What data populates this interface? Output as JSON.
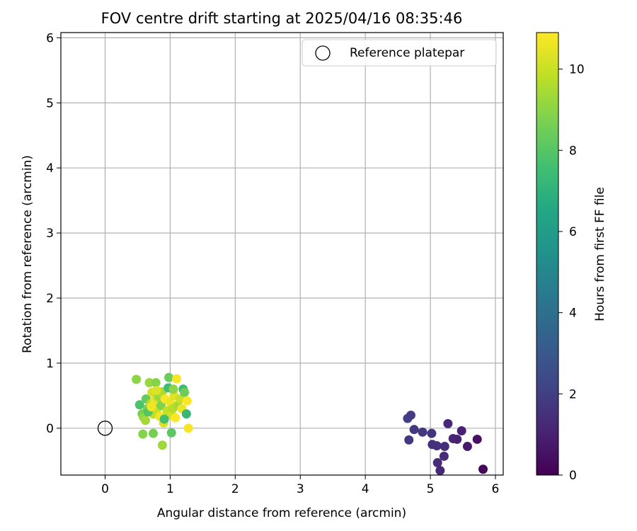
{
  "chart_data": {
    "type": "scatter",
    "title": "FOV centre drift starting at 2025/04/16 08:35:46",
    "xlabel": "Angular distance from reference (arcmin)",
    "ylabel": "Rotation from reference (arcmin)",
    "xlim": [
      -0.68,
      6.12
    ],
    "ylim": [
      -0.72,
      6.08
    ],
    "xticks": [
      "0",
      "1",
      "2",
      "3",
      "4",
      "5",
      "6"
    ],
    "yticks": [
      "0",
      "1",
      "2",
      "3",
      "4",
      "5",
      "6"
    ],
    "grid": true,
    "legend": {
      "position": "top-right",
      "entries": [
        "Reference platepar"
      ]
    },
    "reference_point": {
      "x": 0,
      "y": 0,
      "marker": "open-circle",
      "label": "Reference platepar"
    },
    "colorbar": {
      "label": "Hours from first FF file",
      "colormap": "viridis",
      "range": [
        0,
        10.9
      ],
      "ticks": [
        "0",
        "2",
        "4",
        "6",
        "8",
        "10"
      ]
    },
    "points": [
      {
        "x": 4.65,
        "y": 0.15,
        "c": 2.0
      },
      {
        "x": 4.7,
        "y": 0.2,
        "c": 1.9
      },
      {
        "x": 4.67,
        "y": -0.18,
        "c": 1.8
      },
      {
        "x": 4.75,
        "y": -0.02,
        "c": 1.8
      },
      {
        "x": 4.88,
        "y": -0.06,
        "c": 1.7
      },
      {
        "x": 5.02,
        "y": -0.08,
        "c": 1.6
      },
      {
        "x": 5.03,
        "y": -0.25,
        "c": 1.5
      },
      {
        "x": 5.1,
        "y": -0.27,
        "c": 1.5
      },
      {
        "x": 5.22,
        "y": -0.28,
        "c": 1.4
      },
      {
        "x": 5.21,
        "y": -0.43,
        "c": 1.3
      },
      {
        "x": 5.11,
        "y": -0.53,
        "c": 1.3
      },
      {
        "x": 5.15,
        "y": -0.65,
        "c": 1.2
      },
      {
        "x": 5.27,
        "y": 0.07,
        "c": 1.2
      },
      {
        "x": 5.35,
        "y": -0.16,
        "c": 1.1
      },
      {
        "x": 5.41,
        "y": -0.17,
        "c": 1.0
      },
      {
        "x": 5.48,
        "y": -0.04,
        "c": 1.0
      },
      {
        "x": 5.57,
        "y": -0.28,
        "c": 0.8
      },
      {
        "x": 5.72,
        "y": -0.17,
        "c": 0.5
      },
      {
        "x": 5.81,
        "y": -0.63,
        "c": 0.2
      },
      {
        "x": 0.48,
        "y": 0.75,
        "c": 9.0
      },
      {
        "x": 0.53,
        "y": 0.36,
        "c": 7.8
      },
      {
        "x": 0.57,
        "y": 0.22,
        "c": 8.6
      },
      {
        "x": 0.59,
        "y": 0.17,
        "c": 9.1
      },
      {
        "x": 0.62,
        "y": 0.12,
        "c": 9.4
      },
      {
        "x": 0.63,
        "y": 0.45,
        "c": 8.3
      },
      {
        "x": 0.65,
        "y": 0.3,
        "c": 8.7
      },
      {
        "x": 0.68,
        "y": 0.7,
        "c": 9.2
      },
      {
        "x": 0.7,
        "y": 0.38,
        "c": 9.6
      },
      {
        "x": 0.72,
        "y": 0.55,
        "c": 10.2
      },
      {
        "x": 0.74,
        "y": 0.22,
        "c": 9.8
      },
      {
        "x": 0.76,
        "y": 0.42,
        "c": 10.5
      },
      {
        "x": 0.78,
        "y": 0.7,
        "c": 8.9
      },
      {
        "x": 0.8,
        "y": 0.3,
        "c": 10.0
      },
      {
        "x": 0.82,
        "y": 0.48,
        "c": 9.3
      },
      {
        "x": 0.84,
        "y": 0.18,
        "c": 10.7
      },
      {
        "x": 0.86,
        "y": 0.35,
        "c": 8.8
      },
      {
        "x": 0.88,
        "y": 0.56,
        "c": 9.5
      },
      {
        "x": 0.9,
        "y": 0.08,
        "c": 10.3
      },
      {
        "x": 0.92,
        "y": 0.45,
        "c": 10.8
      },
      {
        "x": 0.95,
        "y": 0.27,
        "c": 9.9
      },
      {
        "x": 0.97,
        "y": 0.62,
        "c": 7.5
      },
      {
        "x": 0.98,
        "y": 0.78,
        "c": 8.4
      },
      {
        "x": 1.0,
        "y": 0.4,
        "c": 10.6
      },
      {
        "x": 1.02,
        "y": 0.2,
        "c": 10.1
      },
      {
        "x": 1.04,
        "y": 0.3,
        "c": 9.7
      },
      {
        "x": 1.06,
        "y": 0.5,
        "c": 10.4
      },
      {
        "x": 1.08,
        "y": 0.16,
        "c": 10.9
      },
      {
        "x": 1.1,
        "y": 0.76,
        "c": 10.8
      },
      {
        "x": 1.12,
        "y": 0.35,
        "c": 9.4
      },
      {
        "x": 1.15,
        "y": 0.45,
        "c": 10.0
      },
      {
        "x": 1.18,
        "y": 0.3,
        "c": 10.6
      },
      {
        "x": 1.2,
        "y": 0.6,
        "c": 7.4
      },
      {
        "x": 1.22,
        "y": 0.55,
        "c": 8.5
      },
      {
        "x": 1.25,
        "y": 0.22,
        "c": 7.2
      },
      {
        "x": 1.26,
        "y": 0.42,
        "c": 10.9
      },
      {
        "x": 1.28,
        "y": 0.0,
        "c": 10.8
      },
      {
        "x": 0.58,
        "y": -0.09,
        "c": 8.9
      },
      {
        "x": 0.74,
        "y": -0.08,
        "c": 8.6
      },
      {
        "x": 0.88,
        "y": -0.26,
        "c": 9.3
      },
      {
        "x": 1.02,
        "y": -0.07,
        "c": 8.1
      },
      {
        "x": 0.66,
        "y": 0.25,
        "c": 8.0
      },
      {
        "x": 0.91,
        "y": 0.14,
        "c": 7.6
      },
      {
        "x": 1.05,
        "y": 0.6,
        "c": 9.0
      },
      {
        "x": 0.79,
        "y": 0.58,
        "c": 10.3
      },
      {
        "x": 0.71,
        "y": 0.33,
        "c": 10.7
      }
    ]
  }
}
